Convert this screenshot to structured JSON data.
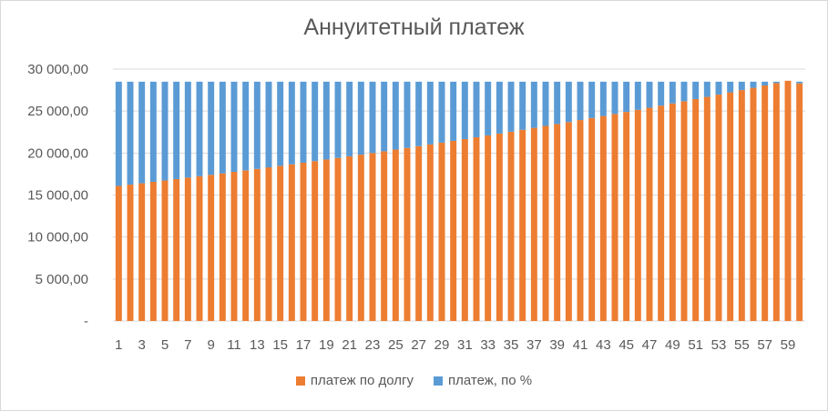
{
  "chart_data": {
    "type": "bar",
    "stacked": true,
    "title": "Аннуитетный платеж",
    "xlabel": "",
    "ylabel": "",
    "ylim": [
      0,
      30000
    ],
    "y_ticks": [
      {
        "value": 0,
        "label": "-"
      },
      {
        "value": 5000,
        "label": "5 000,00"
      },
      {
        "value": 10000,
        "label": "10 000,00"
      },
      {
        "value": 15000,
        "label": "15 000,00"
      },
      {
        "value": 20000,
        "label": "20 000,00"
      },
      {
        "value": 25000,
        "label": "25 000,00"
      },
      {
        "value": 30000,
        "label": "30 000,00"
      }
    ],
    "categories": [
      1,
      2,
      3,
      4,
      5,
      6,
      7,
      8,
      9,
      10,
      11,
      12,
      13,
      14,
      15,
      16,
      17,
      18,
      19,
      20,
      21,
      22,
      23,
      24,
      25,
      26,
      27,
      28,
      29,
      30,
      31,
      32,
      33,
      34,
      35,
      36,
      37,
      38,
      39,
      40,
      41,
      42,
      43,
      44,
      45,
      46,
      47,
      48,
      49,
      50,
      51,
      52,
      53,
      54,
      55,
      56,
      57,
      58,
      59,
      60
    ],
    "x_tick_labels": [
      "1",
      "3",
      "5",
      "7",
      "9",
      "11",
      "13",
      "15",
      "17",
      "19",
      "21",
      "23",
      "25",
      "27",
      "29",
      "31",
      "33",
      "35",
      "37",
      "39",
      "41",
      "43",
      "45",
      "47",
      "49",
      "51",
      "53",
      "55",
      "57",
      "59"
    ],
    "grid": true,
    "legend_position": "bottom",
    "series": [
      {
        "name": "платеж по долгу",
        "color": "#ed7d31",
        "values": [
          16080,
          16240,
          16400,
          16570,
          16730,
          16900,
          17070,
          17240,
          17410,
          17580,
          17760,
          17940,
          18110,
          18300,
          18480,
          18660,
          18850,
          19040,
          19230,
          19420,
          19610,
          19810,
          20010,
          20210,
          20410,
          20610,
          20820,
          21030,
          21240,
          21450,
          21660,
          21880,
          22100,
          22320,
          22540,
          22770,
          23000,
          23230,
          23460,
          23690,
          23930,
          24170,
          24410,
          24650,
          24900,
          25150,
          25400,
          25650,
          25910,
          26170,
          26430,
          26690,
          26960,
          27230,
          27500,
          27770,
          28050,
          28330,
          28610,
          28300
        ]
      },
      {
        "name": "платеж, по %",
        "color": "#5b9bd5",
        "values": [
          12420,
          12260,
          12100,
          11930,
          11770,
          11600,
          11430,
          11260,
          11090,
          10920,
          10740,
          10560,
          10390,
          10200,
          10020,
          9840,
          9650,
          9460,
          9270,
          9080,
          8890,
          8690,
          8490,
          8290,
          8090,
          7890,
          7680,
          7470,
          7260,
          7050,
          6840,
          6620,
          6400,
          6180,
          5960,
          5730,
          5500,
          5270,
          5040,
          4810,
          4570,
          4330,
          4090,
          3850,
          3600,
          3350,
          3100,
          2850,
          2590,
          2330,
          2070,
          1810,
          1540,
          1270,
          1000,
          730,
          450,
          170,
          0,
          200
        ]
      }
    ]
  }
}
